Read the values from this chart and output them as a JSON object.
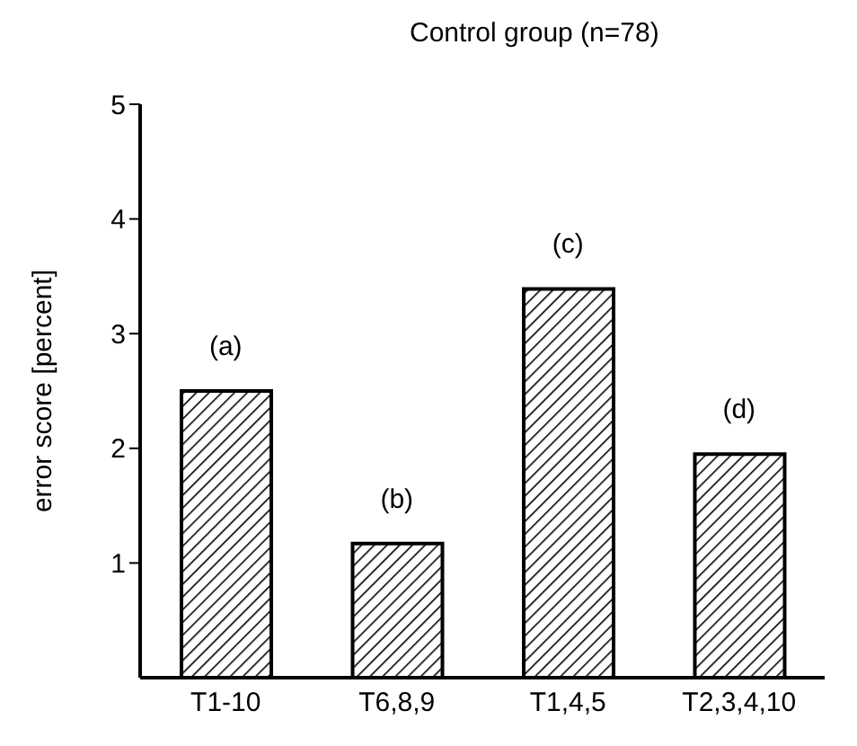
{
  "chart_data": {
    "type": "bar",
    "title": "Control group (n=78)",
    "ylabel": "error score [percent]",
    "categories": [
      "T1-10",
      "T6,8,9",
      "T1,4,5",
      "T2,3,4,10"
    ],
    "values": [
      2.5,
      1.17,
      3.39,
      1.95
    ],
    "color": "#000000",
    "ylim": [
      0,
      5
    ],
    "yticks": [
      1,
      2,
      3,
      4,
      5
    ],
    "grid": false,
    "annotations": [
      {
        "text": "(a)",
        "x": "T1-10",
        "y": 2.5
      },
      {
        "text": "(b)",
        "x": "T6,8,9",
        "y": 1.17
      },
      {
        "text": "(c)",
        "x": "T1,4,5",
        "y": 3.39
      },
      {
        "text": "(d)",
        "x": "T2,3,4,10",
        "y": 1.95
      }
    ]
  }
}
